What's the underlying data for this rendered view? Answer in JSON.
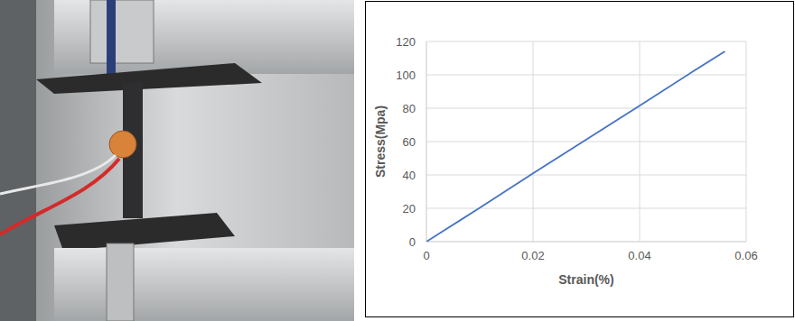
{
  "chart_data": {
    "type": "line",
    "x_label": "Strain(%)",
    "y_label": "Stress(Mpa)",
    "x": [
      0,
      0.01,
      0.02,
      0.03,
      0.04,
      0.05,
      0.056
    ],
    "values": [
      0,
      20.3,
      41,
      61.2,
      81.5,
      102,
      114
    ],
    "color": "#4472c4",
    "xlim": [
      0,
      0.06
    ],
    "xticks": [
      0,
      0.02,
      0.04,
      0.06
    ],
    "ylim": [
      0,
      120
    ],
    "yticks": [
      0,
      20,
      40,
      60,
      80,
      100,
      120
    ],
    "grid": true
  }
}
